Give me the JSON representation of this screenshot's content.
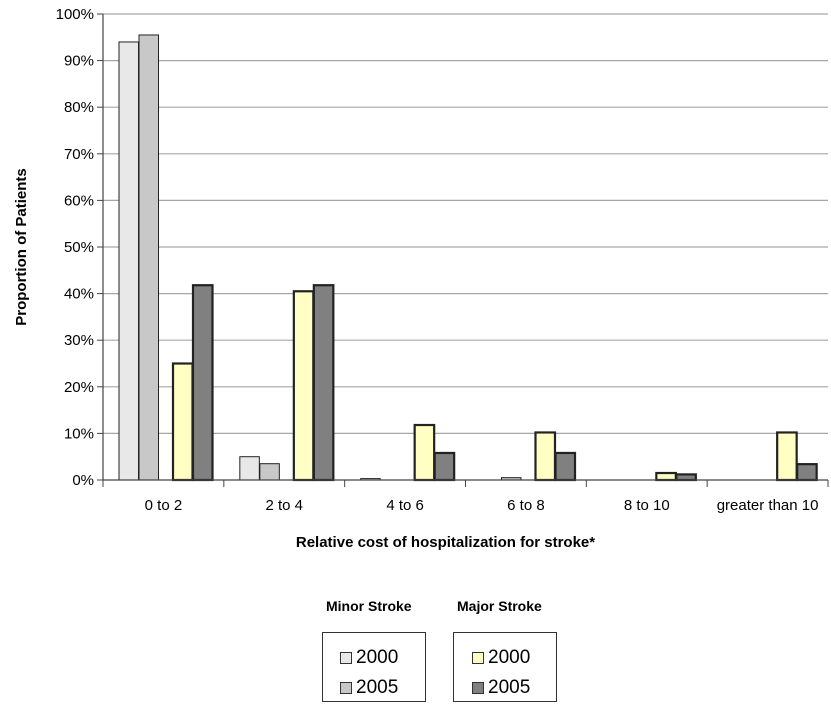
{
  "chart_data": {
    "type": "bar",
    "categories": [
      "0 to 2",
      "2 to 4",
      "4 to 6",
      "6 to 8",
      "8 to 10",
      "greater than 10"
    ],
    "series": [
      {
        "group": "Minor Stroke",
        "name": "2000",
        "values": [
          94,
          5,
          0.3,
          0,
          0,
          0
        ],
        "color": "#e8e8e8"
      },
      {
        "group": "Minor Stroke",
        "name": "2005",
        "values": [
          95.5,
          3.5,
          0,
          0.5,
          0,
          0
        ],
        "color": "#c8c8c8"
      },
      {
        "group": "Major Stroke",
        "name": "2000",
        "values": [
          25,
          40.5,
          11.8,
          10.2,
          1.5,
          10.2
        ],
        "color": "#ffffc4"
      },
      {
        "group": "Major Stroke",
        "name": "2005",
        "values": [
          41.8,
          41.8,
          5.8,
          5.8,
          1.2,
          3.4
        ],
        "color": "#808080"
      }
    ],
    "yticks": [
      "0%",
      "10%",
      "20%",
      "30%",
      "40%",
      "50%",
      "60%",
      "70%",
      "80%",
      "90%",
      "100%"
    ],
    "ylim": [
      0,
      100
    ],
    "ylabel": "Proportion of Patients",
    "xlabel": "Relative cost of hospitalization for stroke*",
    "grid": true,
    "legend": {
      "placement": "bottom",
      "groups": [
        {
          "title": "Minor Stroke",
          "entries": [
            "2000",
            "2005"
          ]
        },
        {
          "title": "Major Stroke",
          "entries": [
            "2000",
            "2005"
          ]
        }
      ]
    }
  }
}
